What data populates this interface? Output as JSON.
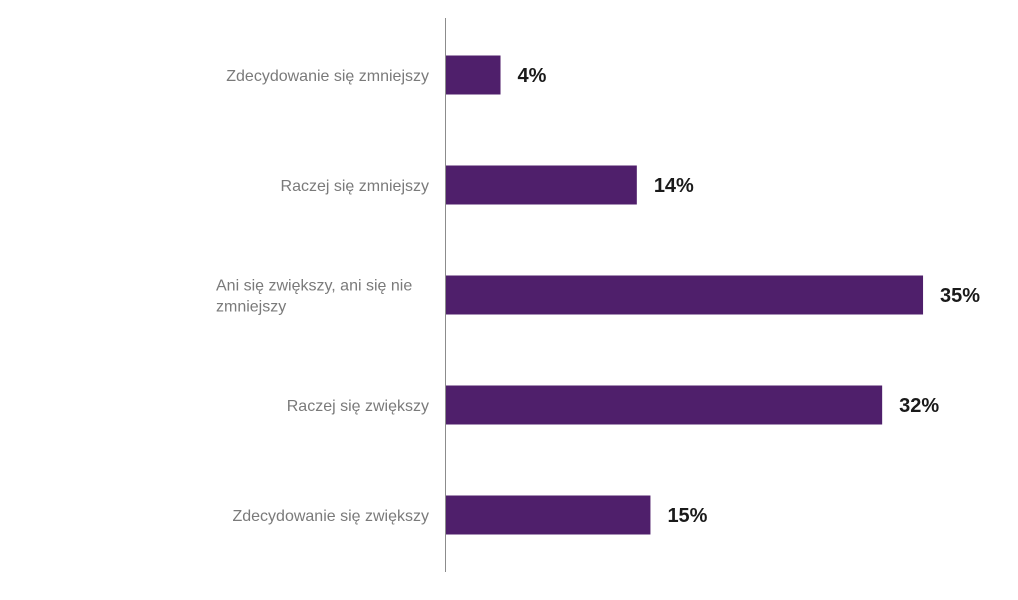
{
  "chart_data": {
    "type": "bar",
    "orientation": "horizontal",
    "categories": [
      "Zdecydowanie się zmniejszy",
      "Raczej się zmniejszy",
      "Ani się zwiększy, ani się nie zmniejszy",
      "Raczej się zwiększy",
      "Zdecydowanie się zwiększy"
    ],
    "category_lines": [
      [
        "Zdecydowanie się zmniejszy"
      ],
      [
        "Raczej się zmniejszy"
      ],
      [
        "Ani się zwiększy, ani się nie",
        "zmniejszy"
      ],
      [
        "Raczej się zwiększy"
      ],
      [
        "Zdecydowanie się zwiększy"
      ]
    ],
    "values": [
      4,
      14,
      35,
      32,
      15
    ],
    "value_labels": [
      "4%",
      "14%",
      "35%",
      "32%",
      "15%"
    ],
    "unit": "%",
    "title": "",
    "xlabel": "",
    "ylabel": "",
    "xlim": [
      0,
      35
    ],
    "grid": false,
    "legend": "none",
    "colors": {
      "bar": "#4f1f6b",
      "axis": "#8c8c8c",
      "category_text": "#7a7a7a",
      "value_text": "#1a1a1a"
    }
  }
}
